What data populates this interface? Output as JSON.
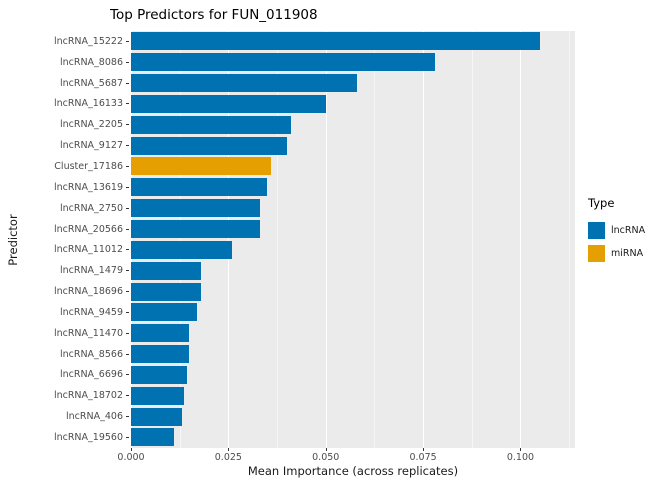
{
  "title": "Top Predictors for FUN_011908",
  "axes": {
    "x_title": "Mean Importance (across replicates)",
    "y_title": "Predictor",
    "x_ticks": [
      "0.000",
      "0.025",
      "0.050",
      "0.075",
      "0.100"
    ],
    "x_tick_values": [
      0,
      0.025,
      0.05,
      0.075,
      0.1
    ],
    "x_minor_values": [
      0.0125,
      0.0375,
      0.0625,
      0.0875,
      0.1125
    ]
  },
  "legend": {
    "title": "Type",
    "items": [
      {
        "label": "lncRNA",
        "color": "#0072B2"
      },
      {
        "label": "miRNA",
        "color": "#E69F00"
      }
    ]
  },
  "chart_data": {
    "type": "bar",
    "orientation": "horizontal",
    "title": "Top Predictors for FUN_011908",
    "xlabel": "Mean Importance (across replicates)",
    "ylabel": "Predictor",
    "xlim": [
      0,
      0.114
    ],
    "grid": true,
    "legend_position": "right",
    "panel_background": "#EBEBEB",
    "categories": [
      "lncRNA_15222",
      "lncRNA_8086",
      "lncRNA_5687",
      "lncRNA_16133",
      "lncRNA_2205",
      "lncRNA_9127",
      "Cluster_17186",
      "lncRNA_13619",
      "lncRNA_2750",
      "lncRNA_20566",
      "lncRNA_11012",
      "lncRNA_1479",
      "lncRNA_18696",
      "lncRNA_9459",
      "lncRNA_11470",
      "lncRNA_8566",
      "lncRNA_6696",
      "lncRNA_18702",
      "lncRNA_406",
      "lncRNA_19560"
    ],
    "values": [
      0.105,
      0.078,
      0.058,
      0.05,
      0.041,
      0.04,
      0.036,
      0.035,
      0.033,
      0.033,
      0.026,
      0.018,
      0.018,
      0.017,
      0.015,
      0.015,
      0.0145,
      0.0135,
      0.013,
      0.011
    ],
    "types": [
      "lncRNA",
      "lncRNA",
      "lncRNA",
      "lncRNA",
      "lncRNA",
      "lncRNA",
      "miRNA",
      "lncRNA",
      "lncRNA",
      "lncRNA",
      "lncRNA",
      "lncRNA",
      "lncRNA",
      "lncRNA",
      "lncRNA",
      "lncRNA",
      "lncRNA",
      "lncRNA",
      "lncRNA",
      "lncRNA"
    ],
    "colors": {
      "lncRNA": "#0072B2",
      "miRNA": "#E69F00"
    }
  }
}
